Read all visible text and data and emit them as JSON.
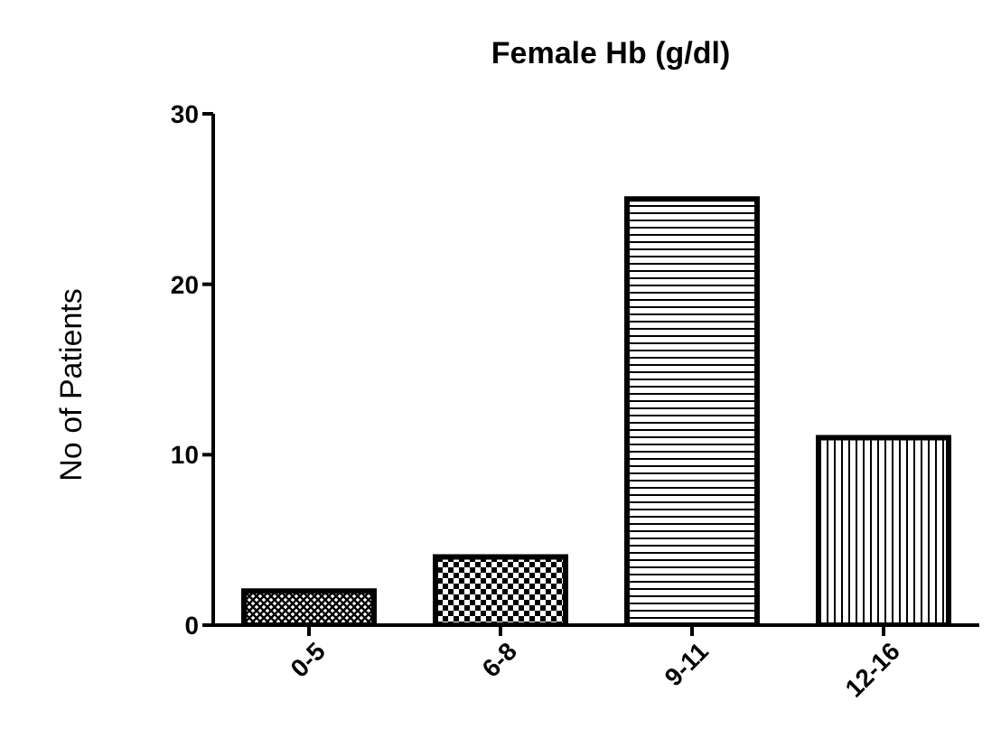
{
  "chart_data": {
    "type": "bar",
    "title": "Female Hb (g/dl)",
    "ylabel": "No of Patients",
    "categories": [
      "0-5",
      "6-8",
      "9-11",
      "12-16"
    ],
    "values": [
      2,
      4,
      25,
      11
    ],
    "colors": [
      "#000000",
      "#000000",
      "#000000",
      "#000000"
    ],
    "ylim": [
      0,
      30
    ],
    "yticks": [
      0,
      10,
      20,
      30
    ],
    "grid": false
  }
}
